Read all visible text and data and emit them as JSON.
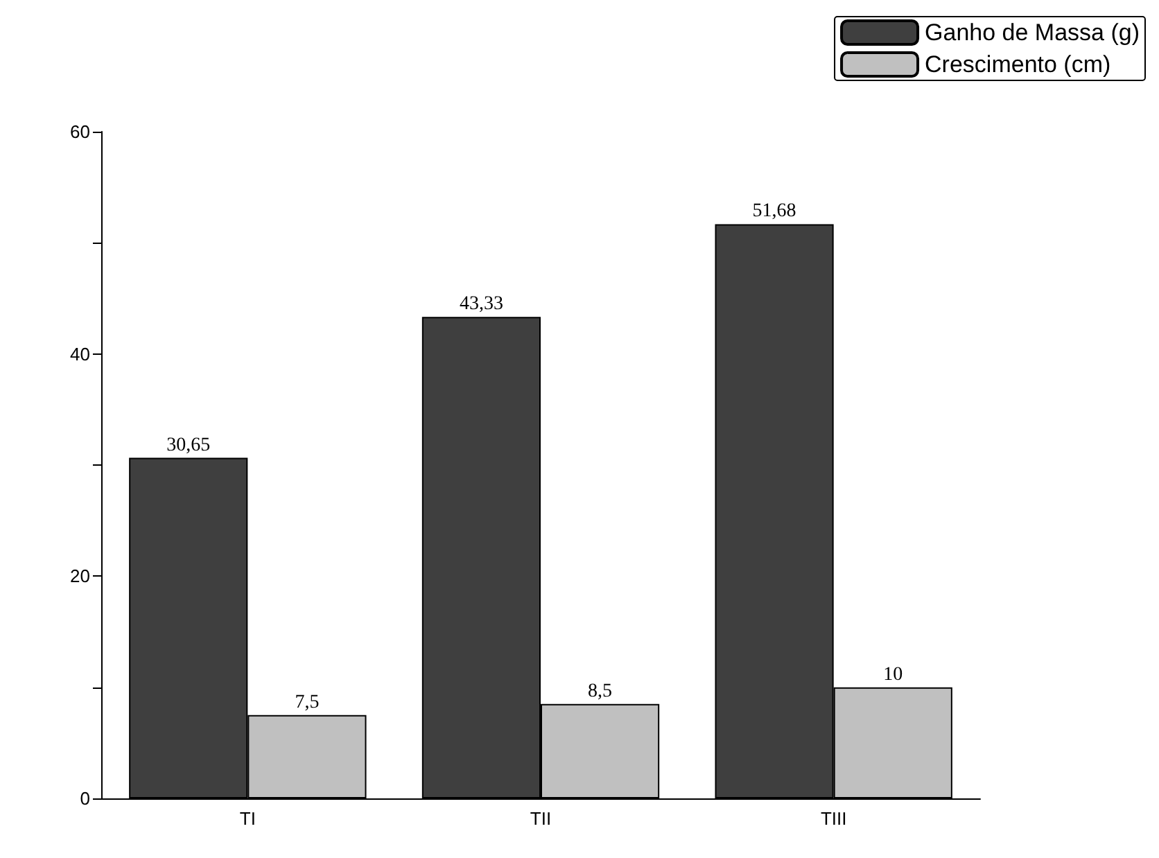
{
  "chart_data": {
    "type": "bar",
    "categories": [
      "TI",
      "TII",
      "TIII"
    ],
    "series": [
      {
        "name": "Ganho de Massa (g)",
        "color": "#3f3f3f",
        "values": [
          30.65,
          43.33,
          51.68
        ],
        "value_labels": [
          "30,65",
          "43,33",
          "51,68"
        ]
      },
      {
        "name": "Crescimento (cm)",
        "color": "#c0c0c0",
        "values": [
          7.5,
          8.5,
          10
        ],
        "value_labels": [
          "7,5",
          "8,5",
          "10"
        ]
      }
    ],
    "ylim": [
      0,
      60
    ],
    "yticks": [
      0,
      {
        "value": 10,
        "label": null
      },
      20,
      {
        "value": 30,
        "label": null
      },
      40,
      {
        "value": 50,
        "label": null
      },
      60
    ],
    "grid": false,
    "legend": "top right"
  }
}
